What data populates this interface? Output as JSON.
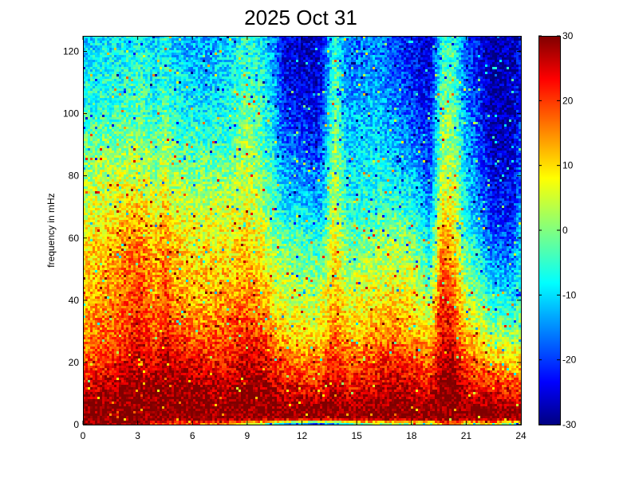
{
  "chart_data": {
    "type": "heatmap",
    "title": "2025 Oct 31",
    "xlabel": "",
    "ylabel": "frequency in mHz",
    "xlim": [
      0,
      24
    ],
    "ylim": [
      0,
      125
    ],
    "x_ticks": [
      0,
      3,
      6,
      9,
      12,
      15,
      18,
      21,
      24
    ],
    "y_ticks": [
      0,
      20,
      40,
      60,
      80,
      100,
      120
    ],
    "colorbar": {
      "min": -30,
      "max": 30,
      "ticks": [
        -30,
        -20,
        -10,
        0,
        10,
        20,
        30
      ],
      "colormap": "jet"
    },
    "grid": false,
    "profile_hours": [
      0,
      1,
      2,
      3,
      4,
      4.5,
      5,
      6,
      7,
      8,
      9,
      9.8,
      10.5,
      11,
      12,
      13,
      13.8,
      14.5,
      15,
      16,
      17,
      18,
      19,
      19.7,
      20.3,
      21,
      21.5,
      22.5,
      23.5,
      24
    ],
    "profile_freq_mhz": [
      0,
      2,
      5,
      10,
      20,
      30,
      40,
      50,
      60,
      70,
      80,
      90,
      100,
      110,
      120,
      125
    ],
    "profile_power": [
      [
        30,
        30,
        30,
        30,
        20,
        18,
        18,
        16,
        15,
        12,
        6,
        0,
        -5,
        -12,
        -18,
        -20,
        -15,
        -8,
        -5,
        0,
        0,
        0,
        0,
        12,
        16,
        2,
        4,
        6,
        -2,
        0
      ],
      [
        30,
        30,
        30,
        30,
        30,
        30,
        30,
        30,
        30,
        30,
        30,
        30,
        30,
        30,
        30,
        30,
        30,
        30,
        30,
        30,
        30,
        30,
        30,
        30,
        30,
        30,
        30,
        30,
        30,
        30
      ],
      [
        30,
        30,
        30,
        30,
        30,
        30,
        30,
        30,
        30,
        30,
        30,
        30,
        30,
        30,
        30,
        30,
        30,
        30,
        30,
        30,
        30,
        30,
        30,
        30,
        30,
        30,
        30,
        30,
        30,
        30
      ],
      [
        26,
        28,
        30,
        30,
        30,
        30,
        30,
        30,
        28,
        28,
        30,
        30,
        28,
        25,
        24,
        24,
        28,
        24,
        24,
        26,
        28,
        26,
        24,
        30,
        30,
        26,
        24,
        24,
        22,
        22
      ],
      [
        18,
        20,
        22,
        26,
        24,
        28,
        26,
        24,
        22,
        22,
        26,
        26,
        20,
        18,
        16,
        16,
        22,
        18,
        18,
        20,
        22,
        20,
        16,
        28,
        28,
        18,
        16,
        12,
        10,
        10
      ],
      [
        14,
        16,
        18,
        22,
        18,
        22,
        18,
        16,
        16,
        18,
        20,
        18,
        12,
        10,
        8,
        8,
        16,
        10,
        10,
        12,
        14,
        12,
        8,
        24,
        22,
        10,
        8,
        2,
        0,
        2
      ],
      [
        12,
        14,
        16,
        20,
        14,
        20,
        14,
        12,
        12,
        14,
        16,
        14,
        8,
        6,
        4,
        4,
        12,
        6,
        6,
        8,
        10,
        8,
        2,
        22,
        18,
        4,
        2,
        -6,
        -8,
        -4
      ],
      [
        10,
        12,
        14,
        18,
        12,
        18,
        12,
        10,
        10,
        10,
        12,
        10,
        4,
        2,
        0,
        -2,
        10,
        2,
        2,
        4,
        6,
        4,
        -4,
        18,
        14,
        0,
        -4,
        -12,
        -14,
        -8
      ],
      [
        8,
        10,
        12,
        16,
        10,
        14,
        10,
        8,
        8,
        8,
        10,
        6,
        0,
        -2,
        -4,
        -6,
        8,
        -2,
        -2,
        0,
        2,
        0,
        -8,
        14,
        10,
        -4,
        -8,
        -18,
        -18,
        -10
      ],
      [
        4,
        6,
        8,
        10,
        6,
        10,
        6,
        4,
        4,
        4,
        6,
        2,
        -4,
        -8,
        -10,
        -12,
        6,
        -6,
        -6,
        -4,
        -4,
        -6,
        -14,
        8,
        6,
        -8,
        -12,
        -22,
        -22,
        -14
      ],
      [
        2,
        4,
        4,
        6,
        2,
        6,
        2,
        0,
        0,
        0,
        4,
        0,
        -6,
        -12,
        -14,
        -16,
        4,
        -8,
        -8,
        -6,
        -8,
        -10,
        -18,
        4,
        4,
        -10,
        -14,
        -24,
        -24,
        -16
      ],
      [
        -2,
        0,
        0,
        2,
        -2,
        2,
        -2,
        -4,
        -4,
        -4,
        2,
        -2,
        -8,
        -16,
        -18,
        -20,
        2,
        -10,
        -10,
        -8,
        -12,
        -14,
        -20,
        2,
        2,
        -12,
        -16,
        -26,
        -26,
        -18
      ],
      [
        -6,
        -4,
        -4,
        -2,
        -6,
        -2,
        -6,
        -8,
        -8,
        -6,
        0,
        -4,
        -10,
        -20,
        -22,
        -22,
        0,
        -12,
        -12,
        -10,
        -14,
        -18,
        -22,
        0,
        0,
        -14,
        -18,
        -28,
        -26,
        -20
      ],
      [
        -8,
        -6,
        -6,
        -4,
        -8,
        -4,
        -8,
        -10,
        -10,
        -8,
        -2,
        -6,
        -12,
        -22,
        -24,
        -24,
        -2,
        -14,
        -14,
        -12,
        -16,
        -20,
        -24,
        -2,
        -2,
        -16,
        -20,
        -28,
        -26,
        -22
      ],
      [
        -10,
        -8,
        -8,
        -6,
        -10,
        -6,
        -10,
        -12,
        -12,
        -10,
        -4,
        -8,
        -14,
        -24,
        -26,
        -26,
        -4,
        -16,
        -16,
        -14,
        -18,
        -22,
        -26,
        -4,
        -4,
        -18,
        -22,
        -28,
        -26,
        -24
      ],
      [
        -10,
        -8,
        -8,
        -6,
        -10,
        -6,
        -10,
        -12,
        -12,
        -10,
        -4,
        -8,
        -14,
        -24,
        -26,
        -26,
        -4,
        -16,
        -16,
        -14,
        -18,
        -22,
        -26,
        -4,
        -4,
        -18,
        -22,
        -28,
        -26,
        -24
      ]
    ],
    "noise_amplitude": 6
  }
}
